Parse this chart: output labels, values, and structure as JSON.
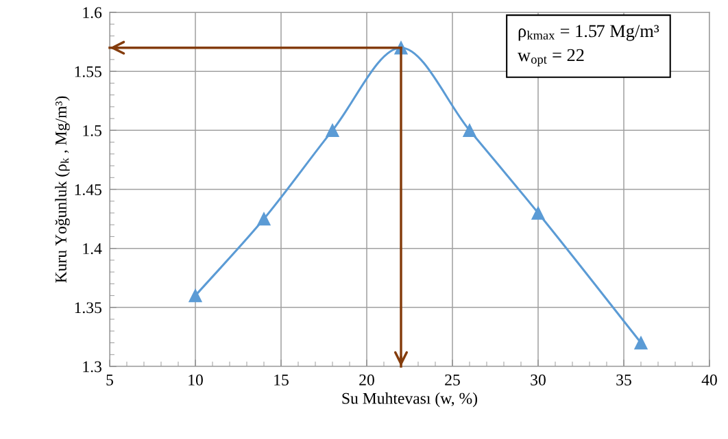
{
  "chart_data": {
    "type": "line",
    "xlabel": "Su Muhtevası (w, %)",
    "ylabel": "Kuru Yoğunluk (ρ$_{k}$ , Mg/m³)",
    "x": [
      10,
      14,
      18,
      22,
      26,
      30,
      36
    ],
    "series": [
      {
        "color": "#5b9bd5",
        "values": [
          1.36,
          1.425,
          1.5,
          1.57,
          1.5,
          1.43,
          1.32
        ]
      }
    ],
    "xlim": [
      5,
      40
    ],
    "xticks": [
      5,
      10,
      15,
      20,
      25,
      30,
      35,
      40
    ],
    "ylim": [
      1.3,
      1.6
    ],
    "yticks": [
      1.3,
      1.35,
      1.4,
      1.45,
      1.5,
      1.55,
      1.6
    ],
    "grid": true,
    "marker": "triangle",
    "line_style": "solid",
    "legend": false,
    "ref_lines": [
      {
        "axis": "x",
        "value": 22,
        "color": "#843c0c"
      },
      {
        "axis": "y",
        "value": 1.57,
        "color": "#843c0c"
      }
    ],
    "annotations": [
      "ρ$_{kmax}$ = 1.57 Mg/m³\nw$_{opt}$ = 22"
    ]
  }
}
